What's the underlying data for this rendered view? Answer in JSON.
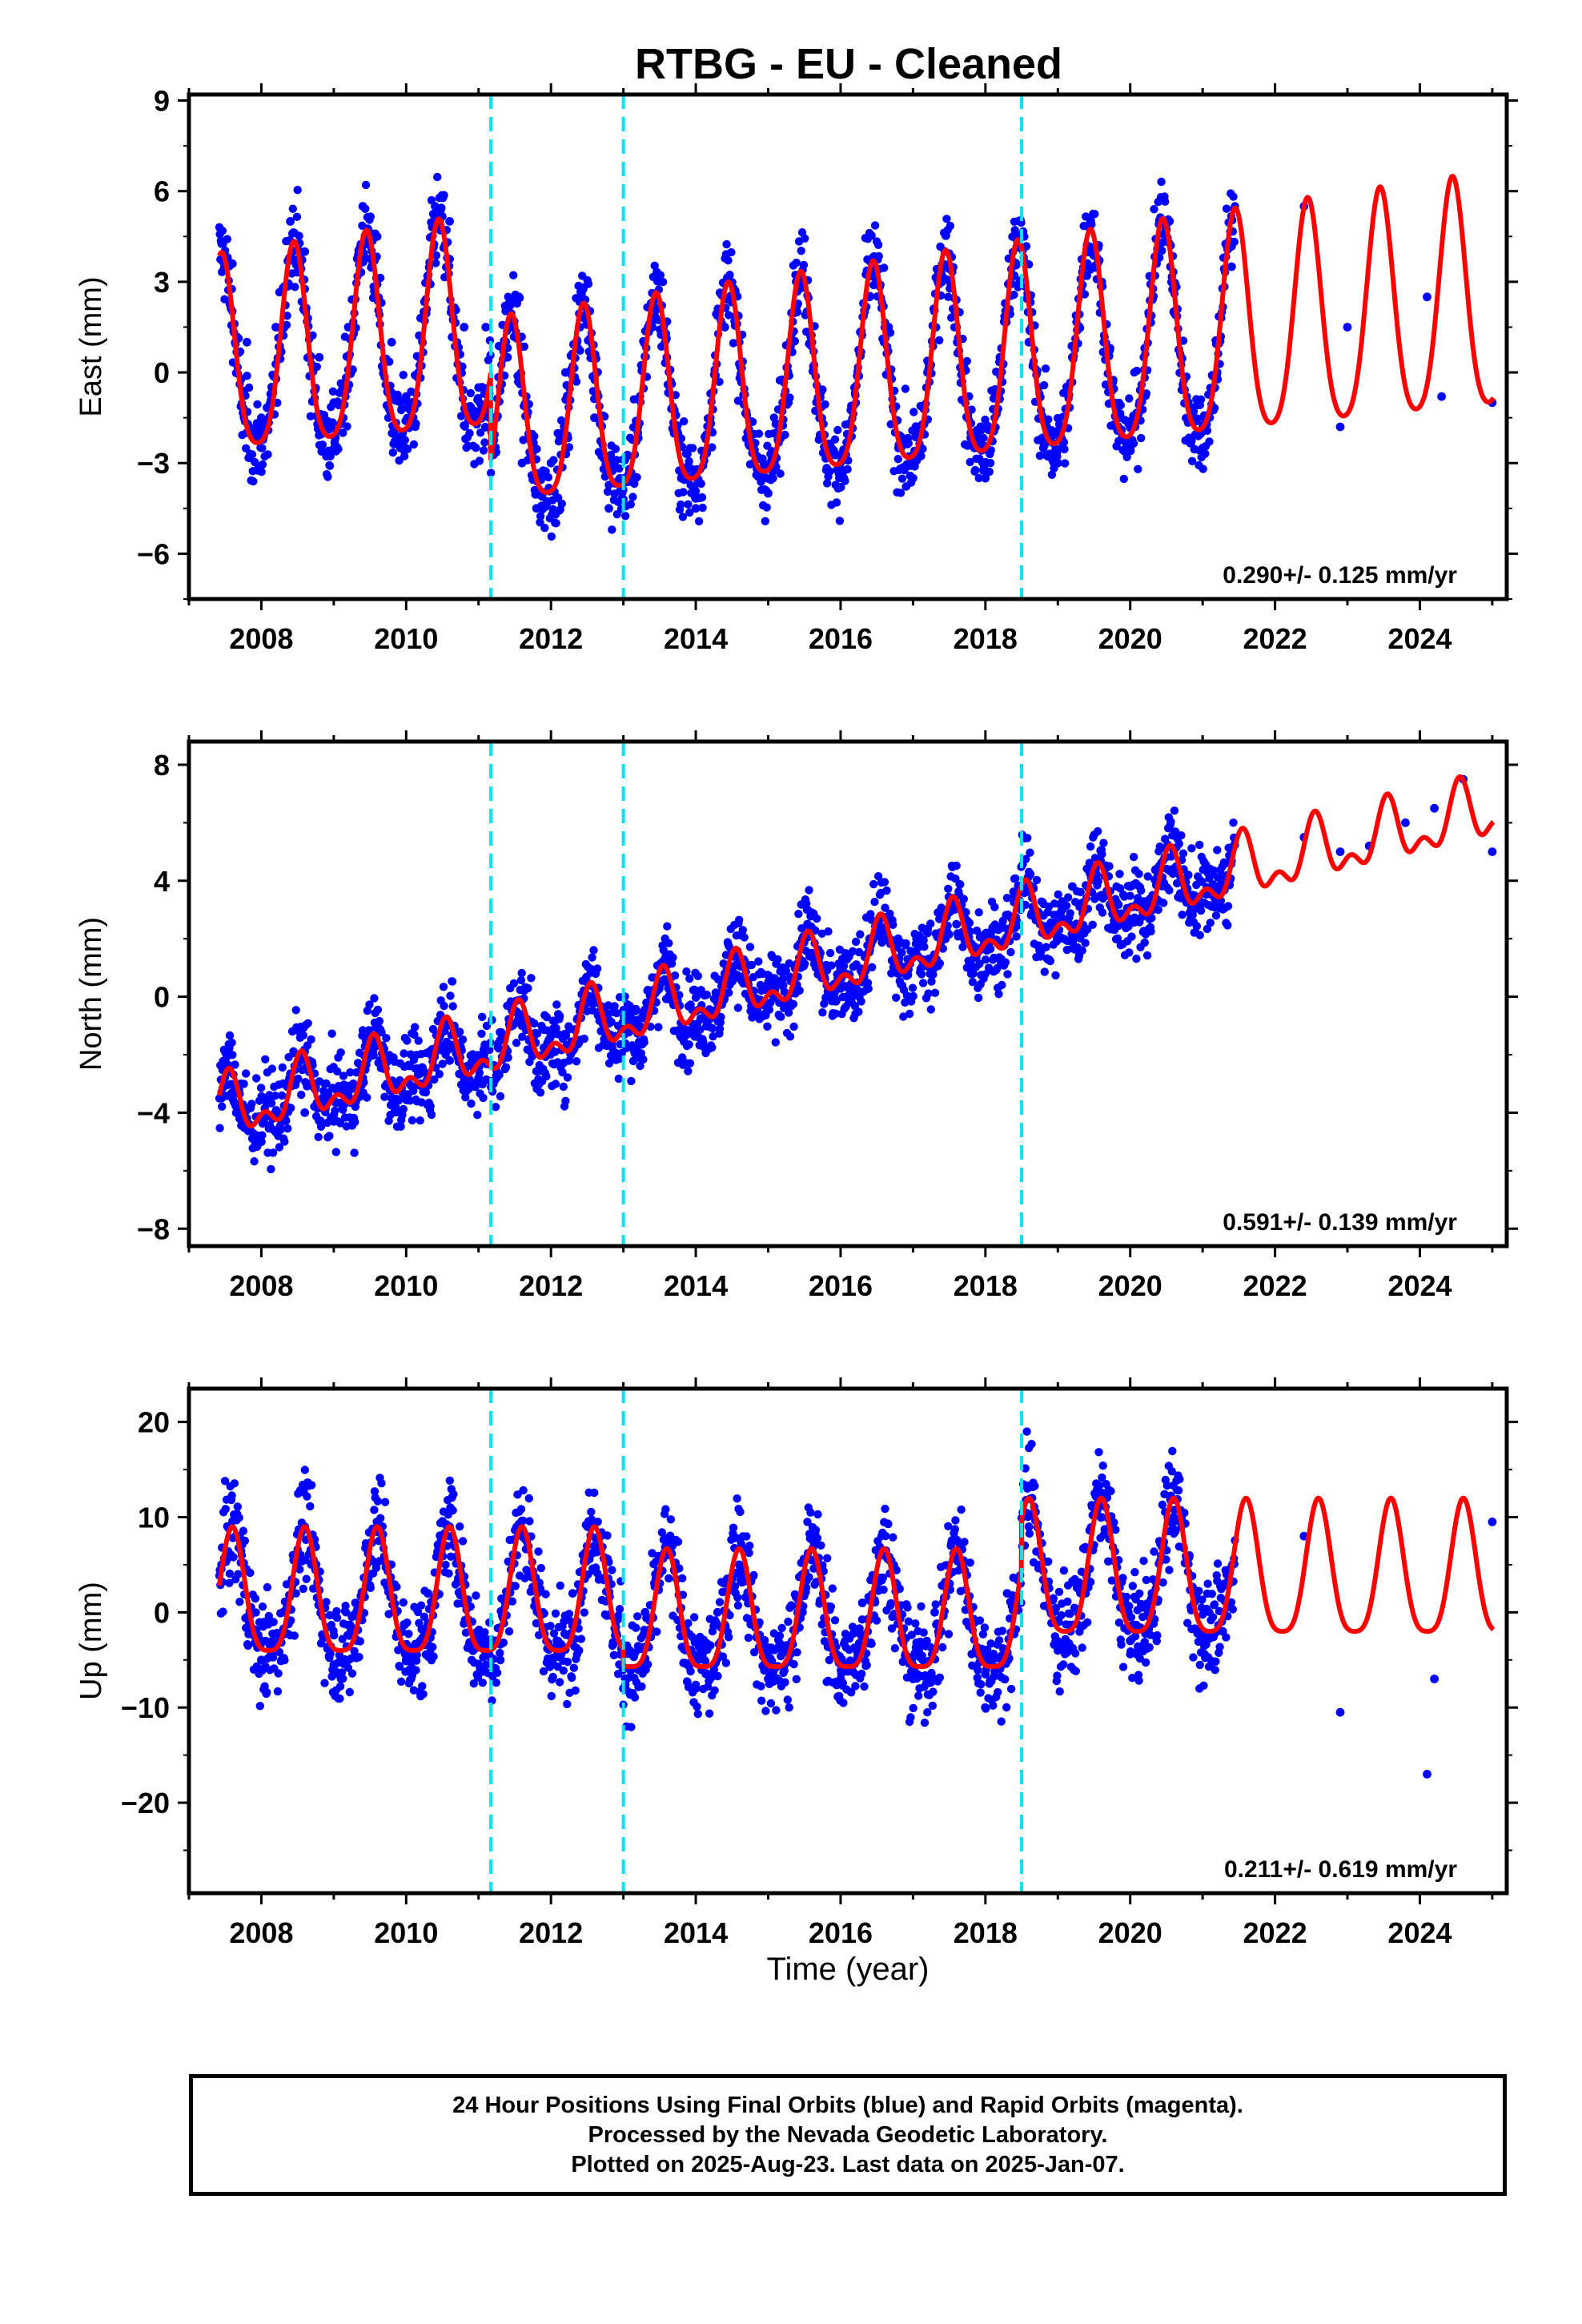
{
  "chart_data": {
    "type": "scatter",
    "title": "RTBG  - EU - Cleaned",
    "xlabel": "Time (year)",
    "xlim": [
      2007.0,
      2025.2
    ],
    "x_ticks": [
      2008,
      2010,
      2012,
      2014,
      2016,
      2018,
      2020,
      2022,
      2024
    ],
    "x_tick_labels": [
      "2008",
      "2010",
      "2012",
      "2014",
      "2016",
      "2018",
      "2020",
      "2022",
      "2024"
    ],
    "breaks": [
      2011.17,
      2013.0,
      2018.5
    ],
    "colors": {
      "points": "#0000ff",
      "fit": "#ff0000",
      "breaks": "#00e5ee"
    },
    "panels": [
      {
        "name": "east",
        "ylabel": "East (mm)",
        "ylim": [
          -7.5,
          9.2
        ],
        "y_ticks": [
          -6,
          -3,
          0,
          3,
          6,
          9
        ],
        "y_tick_labels": [
          "−6",
          "−3",
          "0",
          "3",
          "6",
          "9"
        ],
        "rate_label": "0.290+/- 0.125 mm/yr",
        "data_x": [
          2007.45,
          2007.6,
          2007.8,
          2008.0,
          2008.2,
          2008.4,
          2008.6,
          2008.8,
          2009.0,
          2009.2,
          2009.4,
          2009.6,
          2009.8,
          2010.0,
          2010.2,
          2010.4,
          2010.6,
          2010.8,
          2011.0,
          2011.1,
          2011.25,
          2011.4,
          2011.6,
          2011.8,
          2012.0,
          2012.2,
          2012.4,
          2012.6,
          2012.8,
          2013.0,
          2013.2,
          2013.4,
          2013.6,
          2013.8,
          2014.0,
          2014.2,
          2014.4,
          2014.6,
          2014.8,
          2015.0,
          2015.2,
          2015.4,
          2015.6,
          2015.8,
          2016.0,
          2016.2,
          2016.4,
          2016.6,
          2016.8,
          2017.0,
          2017.2,
          2017.4,
          2017.6,
          2017.8,
          2018.0,
          2018.2,
          2018.4,
          2018.6,
          2018.8,
          2019.0,
          2019.2,
          2019.4,
          2019.6,
          2019.8,
          2020.0,
          2020.2,
          2020.4,
          2020.6,
          2020.8,
          2021.0,
          2021.2,
          2021.4,
          2022.4,
          2022.9,
          2023.0,
          2024.1,
          2024.3,
          2025.0
        ],
        "data_y": [
          4.3,
          3.6,
          1.0,
          -1.5,
          1.5,
          5.0,
          4.0,
          0.5,
          -1.0,
          1.5,
          5.5,
          4.5,
          1.0,
          -0.8,
          1.8,
          5.5,
          5.0,
          1.5,
          -0.5,
          1.5,
          -1.5,
          0.5,
          -3.0,
          -4.5,
          -3.0,
          0.0,
          1.5,
          -1.5,
          -4.5,
          -4.2,
          -2.0,
          1.5,
          0.5,
          -3.5,
          -4.5,
          -1.5,
          1.5,
          1.0,
          -3.0,
          -4.0,
          -1.0,
          2.0,
          1.0,
          -2.8,
          -3.8,
          -0.5,
          2.5,
          1.0,
          -2.5,
          -3.5,
          0.0,
          3.0,
          1.5,
          -2.0,
          -3.5,
          0.5,
          3.2,
          1.0,
          -2.5,
          -3.0,
          0.5,
          3.2,
          2.0,
          -1.8,
          -2.5,
          0.8,
          3.8,
          2.0,
          -1.5,
          -2.5,
          0.0,
          3.5,
          5.5,
          -1.8,
          1.5,
          2.5,
          -0.8,
          -1.0
        ],
        "fit_note": "annual+semiannual seasonal model"
      },
      {
        "name": "north",
        "ylabel": "North (mm)",
        "ylim": [
          -8.6,
          8.8
        ],
        "y_ticks": [
          -8,
          -4,
          0,
          4,
          8
        ],
        "y_tick_labels": [
          "−8",
          "−4",
          "0",
          "4",
          "8"
        ],
        "rate_label": "0.591+/- 0.139 mm/yr",
        "data_x": [
          2007.45,
          2007.7,
          2008.0,
          2008.3,
          2008.6,
          2009.0,
          2009.4,
          2009.8,
          2010.2,
          2010.6,
          2011.0,
          2011.3,
          2011.6,
          2012.0,
          2012.4,
          2012.8,
          2013.2,
          2013.6,
          2014.0,
          2014.4,
          2014.8,
          2015.2,
          2015.6,
          2016.0,
          2016.4,
          2016.8,
          2017.2,
          2017.6,
          2018.0,
          2018.4,
          2018.8,
          2019.2,
          2019.6,
          2020.0,
          2020.4,
          2020.8,
          2021.2,
          2022.4,
          2022.9,
          2023.3,
          2023.8,
          2024.2,
          2024.6,
          2025.0
        ],
        "data_y": [
          -3.5,
          -4.2,
          -5.0,
          -3.0,
          -4.0,
          -4.3,
          -2.8,
          -3.5,
          -3.0,
          -2.2,
          -2.8,
          -1.5,
          -1.0,
          -1.8,
          -0.5,
          -0.8,
          -1.0,
          0.5,
          -0.5,
          0.8,
          0.2,
          1.0,
          1.5,
          1.0,
          2.0,
          1.2,
          2.2,
          2.5,
          2.0,
          3.5,
          2.8,
          3.8,
          3.5,
          3.8,
          4.5,
          4.2,
          3.8,
          5.5,
          5.0,
          5.2,
          6.0,
          6.5,
          7.5,
          5.0
        ],
        "fit_note": "linear trend + seasonal model"
      },
      {
        "name": "up",
        "ylabel": "Up (mm)",
        "ylim": [
          -29.5,
          23.5
        ],
        "y_ticks": [
          -20,
          -10,
          0,
          10,
          20
        ],
        "y_tick_labels": [
          "−20",
          "−10",
          "0",
          "10",
          "20"
        ],
        "rate_label": "0.211+/- 0.619 mm/yr",
        "data_x": [
          2007.45,
          2007.7,
          2008.0,
          2008.3,
          2008.6,
          2009.0,
          2009.3,
          2009.6,
          2010.0,
          2010.3,
          2010.6,
          2011.0,
          2011.3,
          2011.6,
          2012.0,
          2012.3,
          2012.6,
          2013.0,
          2013.3,
          2013.6,
          2014.0,
          2014.3,
          2014.6,
          2015.0,
          2015.3,
          2015.6,
          2016.0,
          2016.3,
          2016.6,
          2017.0,
          2017.3,
          2017.6,
          2018.0,
          2018.3,
          2018.6,
          2019.0,
          2019.3,
          2019.6,
          2020.0,
          2020.3,
          2020.6,
          2021.0,
          2021.3,
          2022.4,
          2022.9,
          2024.1,
          2024.2,
          2025.0
        ],
        "data_y": [
          5.0,
          8.0,
          -5.0,
          0.0,
          9.0,
          -5.5,
          1.0,
          9.0,
          -5.0,
          2.0,
          9.0,
          -3.0,
          -5.0,
          8.0,
          -5.0,
          2.0,
          7.0,
          -8.0,
          0.0,
          6.0,
          -8.0,
          0.0,
          5.0,
          -7.0,
          0.5,
          5.5,
          -7.0,
          1.0,
          6.0,
          -7.0,
          0.0,
          6.0,
          -6.5,
          2.0,
          9.0,
          -4.0,
          3.0,
          10.0,
          -3.0,
          2.0,
          10.0,
          -2.5,
          3.0,
          8.0,
          -10.5,
          -17.0,
          -7.0,
          9.5
        ],
        "fit_note": "seasonal model"
      }
    ]
  },
  "footer": {
    "line1": "24 Hour Positions Using Final Orbits (blue) and Rapid Orbits (magenta).",
    "line2": "Processed by the Nevada Geodetic Laboratory.",
    "line3": "Plotted on 2025-Aug-23. Last data on 2025-Jan-07."
  }
}
